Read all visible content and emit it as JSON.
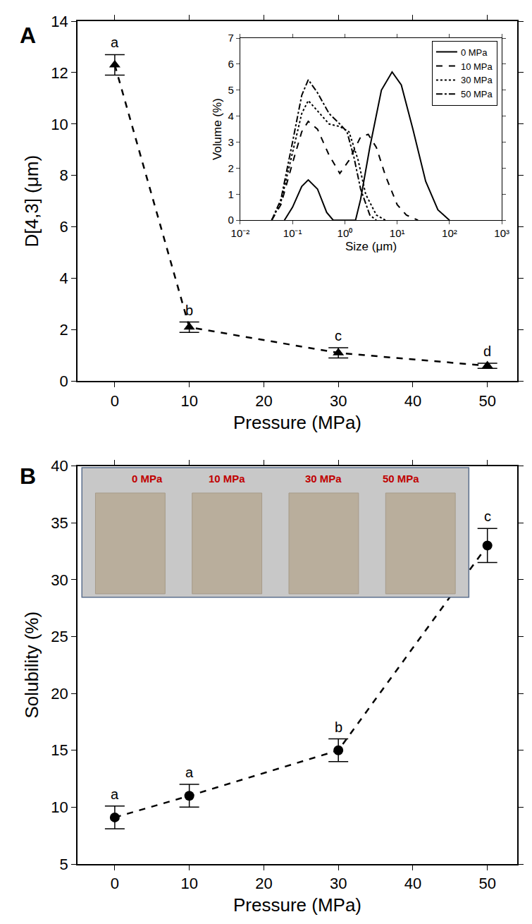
{
  "chart_data": [
    {
      "type": "scatter",
      "panel": "A",
      "x": [
        0,
        10,
        30,
        50
      ],
      "values": [
        12.3,
        2.1,
        1.1,
        0.6
      ],
      "errors": [
        0.4,
        0.2,
        0.2,
        0.1
      ],
      "significance_letters": [
        "a",
        "b",
        "c",
        "d"
      ],
      "xlabel": "Pressure (MPa)",
      "ylabel": "D[4,3] (μm)",
      "xlim": [
        -5,
        54
      ],
      "ylim": [
        0,
        14
      ],
      "xticks": [
        0,
        10,
        20,
        30,
        40,
        50
      ],
      "yticks": [
        0,
        2,
        4,
        6,
        8,
        10,
        12,
        14
      ],
      "marker": "triangle-up",
      "line_style": "dash",
      "color": "#000000",
      "grid": false
    },
    {
      "type": "line",
      "xlabel": "Size (μm)",
      "ylabel": "Volume (%)",
      "log": "x",
      "xlim": [
        0.01,
        1000
      ],
      "ylim": [
        0,
        7
      ],
      "xticks": [
        {
          "value": 0.01,
          "label": "10⁻²"
        },
        {
          "value": 0.1,
          "label": "10⁻¹"
        },
        {
          "value": 1,
          "label": "10⁰"
        },
        {
          "value": 10,
          "label": "10¹"
        },
        {
          "value": 100,
          "label": "10²"
        },
        {
          "value": 1000,
          "label": "10³"
        }
      ],
      "yticks": [
        0,
        1,
        2,
        3,
        4,
        5,
        6,
        7
      ],
      "legend": "upper right",
      "grid": false,
      "series": [
        {
          "name": "0 MPa",
          "color": "#000000",
          "line_style": "solid",
          "x": [
            0.07,
            0.1,
            0.15,
            0.2,
            0.3,
            0.45,
            0.6,
            1,
            1.6,
            2,
            3,
            5,
            8,
            12,
            20,
            35,
            60,
            100
          ],
          "values": [
            0,
            0.5,
            1.3,
            1.55,
            1.2,
            0.3,
            0,
            0,
            0,
            0.8,
            2.8,
            5,
            5.7,
            5.2,
            3.5,
            1.5,
            0.4,
            0
          ]
        },
        {
          "name": "10 MPa",
          "color": "#000000",
          "line_style": "dash",
          "x": [
            0.04,
            0.06,
            0.1,
            0.15,
            0.2,
            0.3,
            0.5,
            0.8,
            1.2,
            2,
            2.8,
            4,
            6,
            10,
            15,
            25
          ],
          "values": [
            0,
            0.6,
            2.2,
            3.4,
            3.8,
            3.5,
            2.5,
            1.8,
            2.3,
            3.2,
            3.3,
            2.8,
            1.7,
            0.6,
            0.2,
            0
          ]
        },
        {
          "name": "30 MPa",
          "color": "#000000",
          "line_style": "dot",
          "x": [
            0.04,
            0.06,
            0.1,
            0.15,
            0.2,
            0.3,
            0.5,
            0.8,
            1.2,
            1.8,
            2.5,
            4,
            6
          ],
          "values": [
            0,
            0.7,
            2.6,
            4.1,
            4.6,
            4.2,
            3.7,
            3.6,
            3.4,
            2.3,
            1.0,
            0.2,
            0
          ]
        },
        {
          "name": "50 MPa",
          "color": "#000000",
          "line_style": "dashdot",
          "x": [
            0.04,
            0.06,
            0.1,
            0.15,
            0.2,
            0.3,
            0.5,
            0.8,
            1.1,
            1.5,
            2,
            3,
            4
          ],
          "values": [
            0,
            0.8,
            3,
            4.8,
            5.4,
            4.9,
            4.1,
            3.7,
            3.4,
            2.4,
            1.2,
            0.2,
            0
          ]
        }
      ]
    },
    {
      "type": "scatter",
      "panel": "B",
      "x": [
        0,
        10,
        30,
        50
      ],
      "values": [
        9.1,
        11,
        15,
        33
      ],
      "errors": [
        1.0,
        1.0,
        1.0,
        1.5
      ],
      "significance_letters": [
        "a",
        "a",
        "b",
        "c"
      ],
      "annotations": [
        "0 MPa",
        "10 MPa",
        "30 MPa",
        "50 MPa"
      ],
      "xlabel": "Pressure (MPa)",
      "ylabel": "Solubility (%)",
      "xlim": [
        -5,
        54
      ],
      "ylim": [
        5,
        40
      ],
      "xticks": [
        0,
        10,
        20,
        30,
        40,
        50
      ],
      "yticks": [
        5,
        10,
        15,
        20,
        25,
        30,
        35,
        40
      ],
      "marker": "circle",
      "line_style": "dash",
      "color": "#000000",
      "grid": false
    }
  ]
}
